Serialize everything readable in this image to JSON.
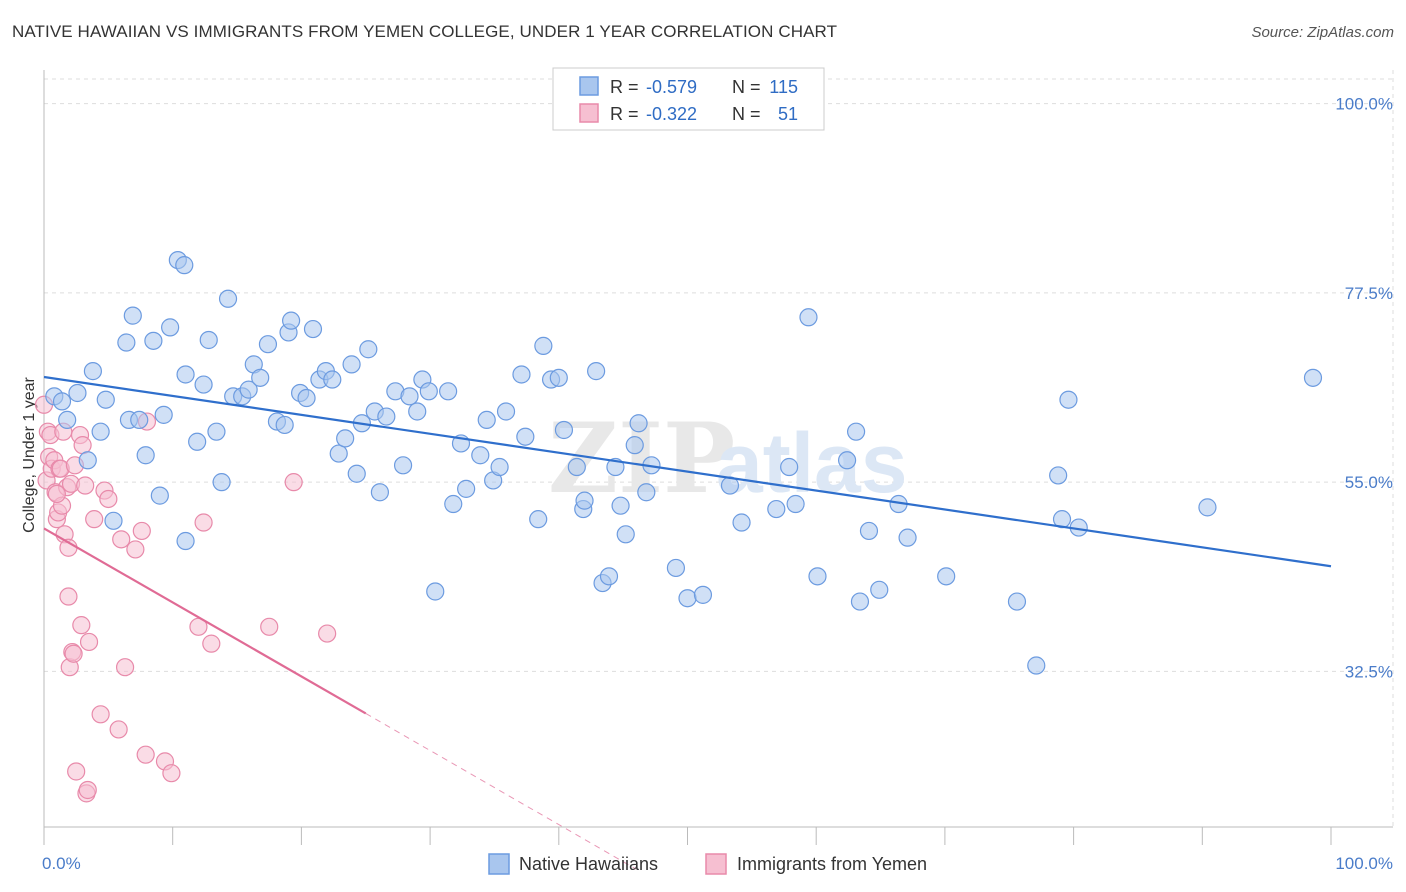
{
  "title": "NATIVE HAWAIIAN VS IMMIGRANTS FROM YEMEN COLLEGE, UNDER 1 YEAR CORRELATION CHART",
  "source": "Source: ZipAtlas.com",
  "watermark": {
    "zip": "ZIP",
    "atlas": "atlas"
  },
  "colors": {
    "blue_fill": "#a9c6ee",
    "blue_stroke": "#6c9be0",
    "blue_line": "#2f6fcc",
    "pink_fill": "#f6bfd1",
    "pink_stroke": "#e88aaa",
    "pink_line": "#e06b95",
    "grid": "#dddddd",
    "tick_text": "#4a7cc9"
  },
  "legend": {
    "rows": [
      {
        "r_label": "R = ",
        "r_value": "-0.579",
        "n_label": "N = ",
        "n_value": "115"
      },
      {
        "r_label": "R = ",
        "r_value": "-0.322",
        "n_label": "N = ",
        "n_value": "51"
      }
    ]
  },
  "chart_data": {
    "type": "scatter",
    "title": "NATIVE HAWAIIAN VS IMMIGRANTS FROM YEMEN COLLEGE, UNDER 1 YEAR CORRELATION CHART",
    "xlabel": "",
    "ylabel": "College, Under 1 year",
    "xlim": [
      0,
      100
    ],
    "ylim": [
      14,
      104
    ],
    "x_tick_labels": [
      "0.0%",
      "100.0%"
    ],
    "y_ticks": [
      32.5,
      55.0,
      77.5,
      100.0
    ],
    "y_tick_labels": [
      "32.5%",
      "55.0%",
      "77.5%",
      "100.0%"
    ],
    "grid": true,
    "legend_position": "top-center",
    "series": [
      {
        "name": "Native Hawaiians",
        "r": -0.579,
        "n": 115,
        "trend": {
          "x": [
            0,
            100
          ],
          "y": [
            67.5,
            45.0
          ]
        },
        "points": [
          [
            0.8,
            65.2
          ],
          [
            1.4,
            64.6
          ],
          [
            1.8,
            62.4
          ],
          [
            2.6,
            65.6
          ],
          [
            3.4,
            57.6
          ],
          [
            3.8,
            68.2
          ],
          [
            4.4,
            61.0
          ],
          [
            4.8,
            64.8
          ],
          [
            5.4,
            50.4
          ],
          [
            6.4,
            71.6
          ],
          [
            6.6,
            62.4
          ],
          [
            6.9,
            74.8
          ],
          [
            7.4,
            62.4
          ],
          [
            7.9,
            58.2
          ],
          [
            8.5,
            71.8
          ],
          [
            9.0,
            53.4
          ],
          [
            9.3,
            63.0
          ],
          [
            9.8,
            73.4
          ],
          [
            10.4,
            81.4
          ],
          [
            10.9,
            80.8
          ],
          [
            11.0,
            67.8
          ],
          [
            11.9,
            59.8
          ],
          [
            12.4,
            66.6
          ],
          [
            12.8,
            71.9
          ],
          [
            13.4,
            61.0
          ],
          [
            13.8,
            55.0
          ],
          [
            14.3,
            76.8
          ],
          [
            14.7,
            65.2
          ],
          [
            15.4,
            65.2
          ],
          [
            15.9,
            66.0
          ],
          [
            16.3,
            69.0
          ],
          [
            16.8,
            67.4
          ],
          [
            17.4,
            71.4
          ],
          [
            18.1,
            62.2
          ],
          [
            18.7,
            61.8
          ],
          [
            19.0,
            72.8
          ],
          [
            19.2,
            74.2
          ],
          [
            19.9,
            65.6
          ],
          [
            20.4,
            65.0
          ],
          [
            20.9,
            73.2
          ],
          [
            21.4,
            67.2
          ],
          [
            21.9,
            68.2
          ],
          [
            22.4,
            67.2
          ],
          [
            22.9,
            58.4
          ],
          [
            23.4,
            60.2
          ],
          [
            23.9,
            69.0
          ],
          [
            24.3,
            56.0
          ],
          [
            24.7,
            62.0
          ],
          [
            25.2,
            70.8
          ],
          [
            25.7,
            63.4
          ],
          [
            26.1,
            53.8
          ],
          [
            26.6,
            62.8
          ],
          [
            27.3,
            65.8
          ],
          [
            27.9,
            57.0
          ],
          [
            28.4,
            65.2
          ],
          [
            29.0,
            63.4
          ],
          [
            29.4,
            67.2
          ],
          [
            29.9,
            65.8
          ],
          [
            30.4,
            42.0
          ],
          [
            31.4,
            65.8
          ],
          [
            31.8,
            52.4
          ],
          [
            32.4,
            59.6
          ],
          [
            32.8,
            54.2
          ],
          [
            33.9,
            58.2
          ],
          [
            34.4,
            62.4
          ],
          [
            34.9,
            55.2
          ],
          [
            35.4,
            56.8
          ],
          [
            35.9,
            63.4
          ],
          [
            37.1,
            67.8
          ],
          [
            37.4,
            60.4
          ],
          [
            38.4,
            50.6
          ],
          [
            38.8,
            71.2
          ],
          [
            39.4,
            67.2
          ],
          [
            40.0,
            67.4
          ],
          [
            40.4,
            61.2
          ],
          [
            41.4,
            56.8
          ],
          [
            41.9,
            51.8
          ],
          [
            42.0,
            52.8
          ],
          [
            42.9,
            68.2
          ],
          [
            43.4,
            43.0
          ],
          [
            43.9,
            43.8
          ],
          [
            44.4,
            56.8
          ],
          [
            44.8,
            52.2
          ],
          [
            45.2,
            48.8
          ],
          [
            45.9,
            59.4
          ],
          [
            46.2,
            62.0
          ],
          [
            46.8,
            53.8
          ],
          [
            47.2,
            57.0
          ],
          [
            49.1,
            44.8
          ],
          [
            50.0,
            41.2
          ],
          [
            51.2,
            41.6
          ],
          [
            53.3,
            54.6
          ],
          [
            54.2,
            50.2
          ],
          [
            56.9,
            51.8
          ],
          [
            57.9,
            56.8
          ],
          [
            58.4,
            52.4
          ],
          [
            59.4,
            74.6
          ],
          [
            60.1,
            43.8
          ],
          [
            62.4,
            57.6
          ],
          [
            63.1,
            61.0
          ],
          [
            63.4,
            40.8
          ],
          [
            64.1,
            49.2
          ],
          [
            64.9,
            42.2
          ],
          [
            66.4,
            52.4
          ],
          [
            67.1,
            48.4
          ],
          [
            70.1,
            43.8
          ],
          [
            75.6,
            40.8
          ],
          [
            77.1,
            33.2
          ],
          [
            78.8,
            55.8
          ],
          [
            79.1,
            50.6
          ],
          [
            79.6,
            64.8
          ],
          [
            80.4,
            49.6
          ],
          [
            90.4,
            52.0
          ],
          [
            98.6,
            67.4
          ],
          [
            11.0,
            48.0
          ]
        ]
      },
      {
        "name": "Immigrants from Yemen",
        "r": -0.322,
        "n": 51,
        "trend": {
          "x": [
            0,
            25
          ],
          "y": [
            49.5,
            27.5
          ]
        },
        "trend_dashed": {
          "x": [
            25,
            46
          ],
          "y": [
            27.5,
            9.0
          ]
        },
        "points": [
          [
            0.0,
            64.2
          ],
          [
            0.2,
            55.2
          ],
          [
            0.3,
            61.0
          ],
          [
            0.4,
            58.0
          ],
          [
            0.5,
            60.6
          ],
          [
            0.6,
            56.6
          ],
          [
            0.8,
            57.6
          ],
          [
            0.9,
            53.8
          ],
          [
            1.0,
            50.6
          ],
          [
            1.1,
            51.4
          ],
          [
            1.2,
            56.6
          ],
          [
            1.3,
            56.6
          ],
          [
            1.4,
            52.2
          ],
          [
            1.5,
            61.0
          ],
          [
            1.6,
            48.8
          ],
          [
            1.8,
            54.4
          ],
          [
            1.9,
            41.4
          ],
          [
            1.9,
            47.2
          ],
          [
            2.0,
            33.0
          ],
          [
            2.1,
            54.8
          ],
          [
            2.2,
            34.8
          ],
          [
            2.3,
            34.6
          ],
          [
            2.4,
            57.0
          ],
          [
            2.5,
            20.6
          ],
          [
            2.8,
            60.6
          ],
          [
            2.9,
            38.0
          ],
          [
            3.0,
            59.4
          ],
          [
            3.2,
            54.6
          ],
          [
            3.3,
            18.0
          ],
          [
            3.4,
            18.4
          ],
          [
            3.5,
            36.0
          ],
          [
            3.9,
            50.6
          ],
          [
            4.4,
            27.4
          ],
          [
            4.7,
            54.0
          ],
          [
            5.0,
            53.0
          ],
          [
            5.8,
            25.6
          ],
          [
            6.0,
            48.2
          ],
          [
            6.3,
            33.0
          ],
          [
            7.1,
            47.0
          ],
          [
            7.6,
            49.2
          ],
          [
            7.9,
            22.6
          ],
          [
            8.0,
            62.2
          ],
          [
            9.4,
            21.8
          ],
          [
            9.9,
            20.4
          ],
          [
            12.0,
            37.8
          ],
          [
            12.4,
            50.2
          ],
          [
            13.0,
            35.8
          ],
          [
            17.5,
            37.8
          ],
          [
            19.4,
            55.0
          ],
          [
            22.0,
            37.0
          ],
          [
            1.0,
            53.6
          ]
        ]
      }
    ]
  },
  "bottom_legend": {
    "items": [
      "Native Hawaiians",
      "Immigrants from Yemen"
    ]
  }
}
